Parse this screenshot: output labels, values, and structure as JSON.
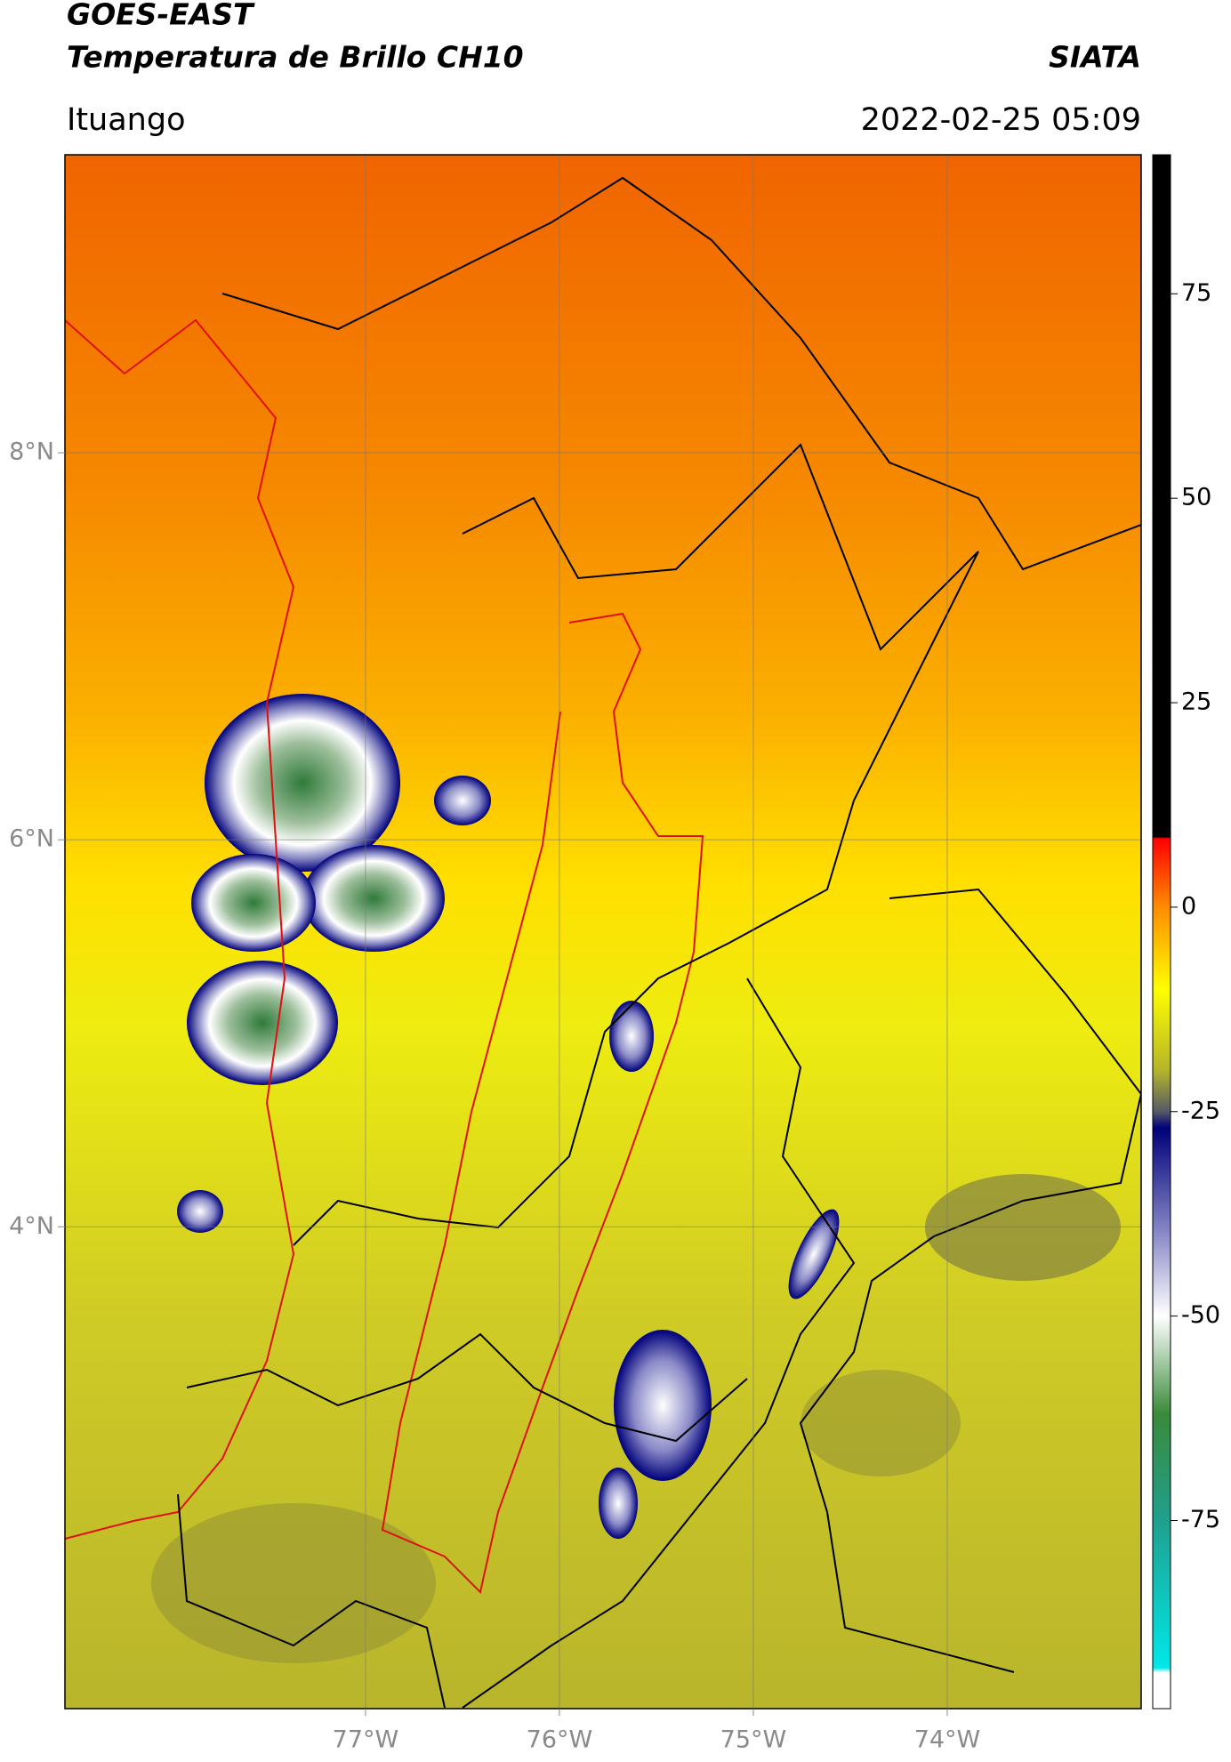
{
  "title": "GOES-EAST",
  "subtitle": "Temperatura de Brillo CH10",
  "source": "SIATA",
  "location": "Ituango",
  "datetime": "2022-02-25 05:09",
  "map": {
    "xlim": [
      -78.55,
      -73.0
    ],
    "ylim": [
      1.51,
      9.54
    ],
    "grid": true,
    "xticks": [
      {
        "value": -77,
        "label": "77°W"
      },
      {
        "value": -76,
        "label": "76°W"
      },
      {
        "value": -75,
        "label": "75°W"
      },
      {
        "value": -74,
        "label": "74°W"
      }
    ],
    "yticks": [
      {
        "value": 8,
        "label": "8°N"
      },
      {
        "value": 6,
        "label": "6°N"
      },
      {
        "value": 4,
        "label": "4°N"
      }
    ]
  },
  "colorbar": {
    "clim": [
      -98,
      92
    ],
    "ticks": [
      75,
      50,
      25,
      0,
      -25,
      -50,
      -75
    ],
    "colormap": [
      {
        "value": 92,
        "color": "#000000"
      },
      {
        "value": 8.6,
        "color": "#000000"
      },
      {
        "value": 8.4,
        "color": "#ff0000"
      },
      {
        "value": 0,
        "color": "#ff8c00"
      },
      {
        "value": -10,
        "color": "#ffff00"
      },
      {
        "value": -20,
        "color": "#b4b42a"
      },
      {
        "value": -25,
        "color": "#555a66"
      },
      {
        "value": -27,
        "color": "#00007a"
      },
      {
        "value": -40,
        "color": "#8a8ac8"
      },
      {
        "value": -50,
        "color": "#ffffff"
      },
      {
        "value": -62,
        "color": "#3a8a3a"
      },
      {
        "value": -75,
        "color": "#1fa08e"
      },
      {
        "value": -93,
        "color": "#00e8e8"
      },
      {
        "value": -93.6,
        "color": "#ffffff"
      },
      {
        "value": -98,
        "color": "#ffffff"
      }
    ]
  }
}
